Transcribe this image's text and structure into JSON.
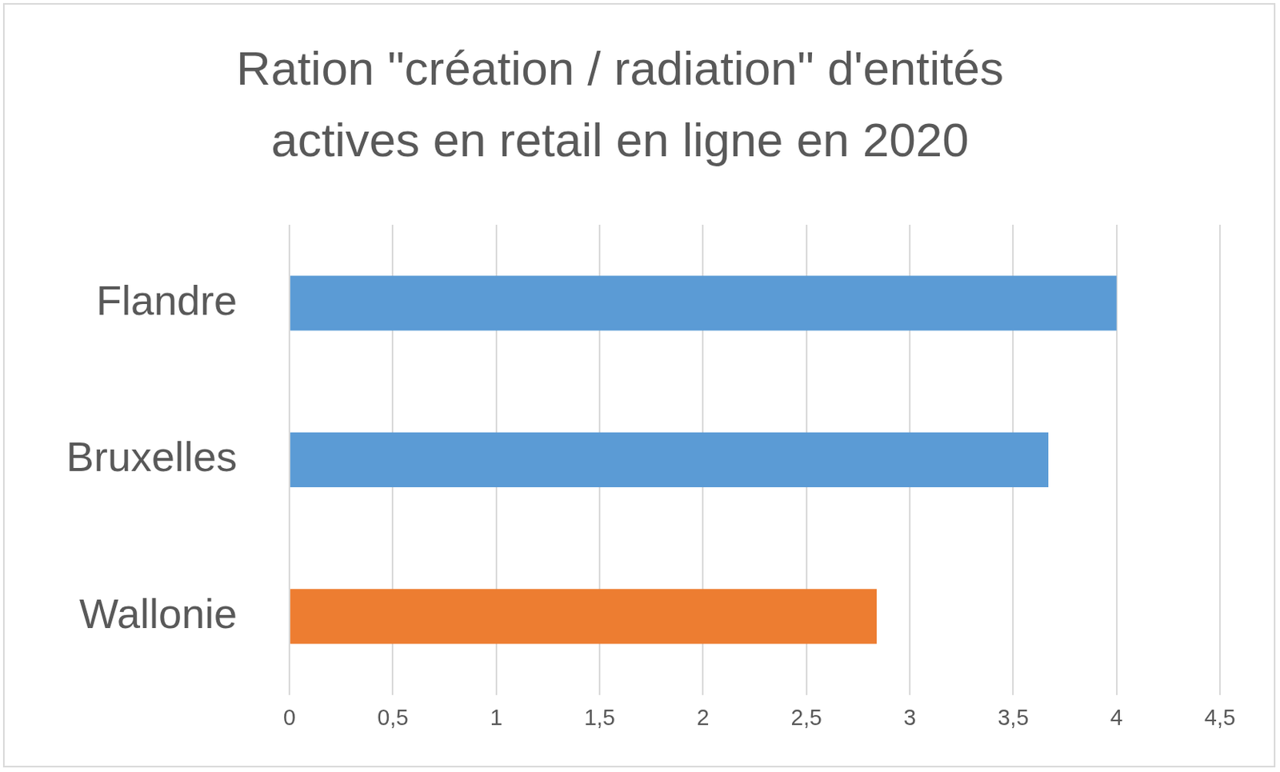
{
  "chart_data": {
    "type": "bar",
    "orientation": "horizontal",
    "title": [
      "Ration \"création / radiation\" d'entités",
      "actives en retail en ligne en 2020"
    ],
    "categories": [
      "Flandre",
      "Bruxelles",
      "Wallonie"
    ],
    "values": [
      4.0,
      3.67,
      2.84
    ],
    "colors": [
      "#5b9bd5",
      "#5b9bd5",
      "#ed7d31"
    ],
    "xlim": [
      0,
      4.5
    ],
    "xticks": [
      0,
      {
        "value": 0.5,
        "label": "0,5"
      },
      1,
      {
        "value": 1.5,
        "label": "1,5"
      },
      2,
      {
        "value": 2.5,
        "label": "2,5"
      },
      3,
      {
        "value": 3.5,
        "label": "3,5"
      },
      4,
      {
        "value": 4.5,
        "label": "4,5"
      }
    ],
    "grid": true
  }
}
